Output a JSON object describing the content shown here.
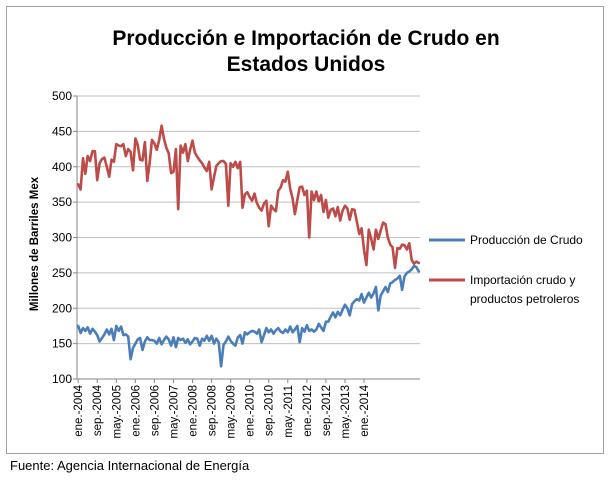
{
  "chart_data": {
    "type": "line",
    "title_line1": "Producción e Importación de Crudo en",
    "title_line2": "Estados Unidos",
    "ylabel": "Millones de Barriles Mex",
    "ylim": [
      100,
      500
    ],
    "yticks": [
      100,
      150,
      200,
      250,
      300,
      350,
      400,
      450,
      500
    ],
    "x_start": "ene.-2004",
    "x_end": "dic.-2014",
    "xtick_labels": [
      "ene.-2004",
      "sep.-2004",
      "may.-2005",
      "ene.-2006",
      "sep.-2006",
      "may.-2007",
      "ene.-2008",
      "sep.-2008",
      "may.-2009",
      "ene.-2010",
      "sep.-2010",
      "may.-2011",
      "ene.-2012",
      "sep.-2012",
      "may.-2013",
      "ene.-2014"
    ],
    "grid": "horizontal",
    "legend_position": "right",
    "series": [
      {
        "name": "Producción de Crudo",
        "color": "#4a7ebb",
        "values": [
          175,
          165,
          172,
          168,
          173,
          164,
          171,
          167,
          162,
          153,
          158,
          163,
          170,
          163,
          171,
          155,
          175,
          168,
          174,
          162,
          163,
          160,
          128,
          144,
          150,
          156,
          158,
          141,
          153,
          159,
          155,
          155,
          154,
          150,
          158,
          149,
          155,
          160,
          156,
          147,
          159,
          145,
          158,
          155,
          157,
          151,
          156,
          149,
          153,
          158,
          157,
          147,
          157,
          154,
          161,
          154,
          161,
          150,
          157,
          152,
          118,
          148,
          153,
          160,
          154,
          150,
          147,
          159,
          162,
          150,
          166,
          163,
          166,
          168,
          167,
          164,
          170,
          152,
          162,
          172,
          166,
          170,
          164,
          169,
          172,
          167,
          165,
          170,
          166,
          174,
          166,
          170,
          175,
          152,
          172,
          167,
          176,
          168,
          170,
          167,
          170,
          178,
          173,
          168,
          181,
          181,
          188,
          194,
          187,
          195,
          190,
          198,
          205,
          200,
          190,
          206,
          210,
          213,
          211,
          220,
          208,
          215,
          222,
          215,
          221,
          230,
          197,
          218,
          224,
          230,
          223,
          235,
          237,
          240,
          242,
          246,
          226,
          245,
          250,
          252,
          255,
          260,
          258,
          252
        ],
        "display_values": null
      },
      {
        "name": "Importación crudo y productos petroleros",
        "color": "#be4b48",
        "values": [
          375,
          368,
          412,
          390,
          415,
          408,
          422,
          422,
          381,
          405,
          411,
          413,
          400,
          386,
          410,
          407,
          432,
          430,
          429,
          432,
          415,
          425,
          421,
          395,
          440,
          431,
          410,
          409,
          435,
          380,
          405,
          438,
          433,
          424,
          438,
          458,
          440,
          427,
          419,
          391,
          393,
          425,
          340,
          430,
          420,
          432,
          408,
          424,
          437,
          420,
          414,
          409,
          405,
          399,
          394,
          407,
          368,
          385,
          401,
          405,
          408,
          408,
          404,
          345,
          405,
          400,
          407,
          398,
          407,
          342,
          361,
          364,
          357,
          352,
          362,
          349,
          342,
          338,
          348,
          352,
          316,
          345,
          340,
          337,
          366,
          371,
          381,
          379,
          393,
          369,
          355,
          333,
          353,
          371,
          372,
          360,
          366,
          300,
          365,
          353,
          365,
          351,
          360,
          336,
          353,
          328,
          339,
          341,
          330,
          343,
          324,
          338,
          345,
          341,
          325,
          340,
          339,
          322,
          305,
          313,
          283,
          261,
          311,
          298,
          283,
          311,
          298,
          310,
          321,
          319,
          300,
          290,
          286,
          257,
          285,
          284,
          290,
          289,
          283,
          292,
          268,
          263,
          266,
          264
        ],
        "display_values": null
      }
    ]
  },
  "source_note": "Fuente: Agencia Internacional de Energía"
}
